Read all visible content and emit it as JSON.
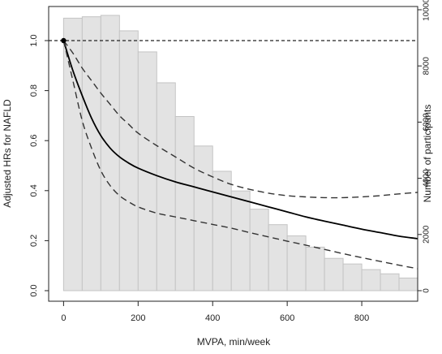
{
  "chart_data": {
    "type": "bar",
    "xlabel": "MVPA, min/week",
    "ylabel_left": "Adjusted HRs for NAFLD",
    "ylabel_right": "Number of participants",
    "xlim": [
      -40,
      950
    ],
    "ylim_left": [
      0,
      1.12
    ],
    "ylim_right": [
      0,
      10000
    ],
    "x_ticks": [
      0,
      200,
      400,
      600,
      800
    ],
    "y_left_ticks": [
      0.0,
      0.2,
      0.4,
      0.6,
      0.8,
      1.0
    ],
    "y_right_ticks": [
      0,
      2000,
      4000,
      6000,
      8000,
      10000
    ],
    "histogram": {
      "bin_width": 50,
      "bin_starts": [
        0,
        50,
        100,
        150,
        200,
        250,
        300,
        350,
        400,
        450,
        500,
        550,
        600,
        650,
        700,
        750,
        800,
        850,
        900
      ],
      "counts": [
        9700,
        9750,
        9800,
        9250,
        8500,
        7400,
        6200,
        5150,
        4250,
        3550,
        2900,
        2350,
        1950,
        1550,
        1150,
        950,
        750,
        600,
        450
      ],
      "fill": "#e3e3e3",
      "stroke": "#c4c4c4"
    },
    "reference_line": {
      "y": 1.0,
      "style": "dashed"
    },
    "series": [
      {
        "role": "estimate",
        "style": "solid",
        "color": "#000000",
        "x": [
          0,
          25,
          50,
          75,
          100,
          125,
          150,
          175,
          200,
          250,
          300,
          350,
          400,
          450,
          500,
          550,
          600,
          650,
          700,
          750,
          800,
          850,
          900,
          950
        ],
        "y": [
          1.0,
          0.88,
          0.78,
          0.69,
          0.62,
          0.57,
          0.535,
          0.51,
          0.49,
          0.46,
          0.435,
          0.415,
          0.395,
          0.375,
          0.355,
          0.335,
          0.315,
          0.295,
          0.278,
          0.262,
          0.246,
          0.232,
          0.218,
          0.208
        ]
      },
      {
        "role": "upper-ci",
        "style": "dashed",
        "color": "#333333",
        "x": [
          0,
          25,
          50,
          75,
          100,
          125,
          150,
          175,
          200,
          250,
          300,
          350,
          400,
          450,
          500,
          550,
          600,
          650,
          700,
          750,
          800,
          850,
          900,
          950
        ],
        "y": [
          1.0,
          0.95,
          0.89,
          0.84,
          0.79,
          0.745,
          0.7,
          0.665,
          0.63,
          0.58,
          0.535,
          0.49,
          0.455,
          0.425,
          0.405,
          0.39,
          0.38,
          0.375,
          0.372,
          0.372,
          0.375,
          0.38,
          0.387,
          0.393
        ]
      },
      {
        "role": "lower-ci",
        "style": "dashed",
        "color": "#333333",
        "x": [
          0,
          25,
          50,
          75,
          100,
          125,
          150,
          175,
          200,
          250,
          300,
          350,
          400,
          450,
          500,
          550,
          600,
          650,
          700,
          750,
          800,
          850,
          900,
          950
        ],
        "y": [
          1.0,
          0.84,
          0.68,
          0.57,
          0.48,
          0.42,
          0.38,
          0.355,
          0.335,
          0.31,
          0.295,
          0.28,
          0.265,
          0.25,
          0.232,
          0.215,
          0.198,
          0.182,
          0.165,
          0.148,
          0.132,
          0.117,
          0.102,
          0.088
        ]
      }
    ],
    "point": {
      "x": 0,
      "y": 1.0
    },
    "grid": false
  }
}
